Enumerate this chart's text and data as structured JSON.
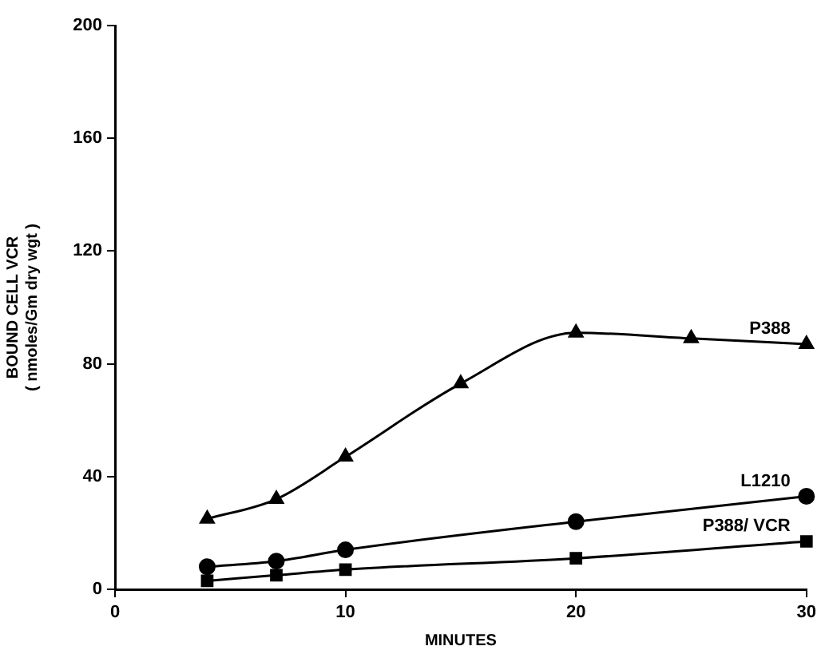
{
  "chart_data": {
    "type": "line",
    "xlabel": "MINUTES",
    "ylabel": "BOUND CELL VCR\n( nmoles/Gm dry wgt )",
    "xlim": [
      0,
      30
    ],
    "xticks": [
      0,
      10,
      20,
      30
    ],
    "ylim": [
      0,
      200
    ],
    "yticks": [
      0,
      40,
      80,
      120,
      160,
      200
    ],
    "grid": false,
    "legend": false,
    "line_style": "solid",
    "series": [
      {
        "name": "P388",
        "color": "#000000",
        "marker": "triangle",
        "x": [
          4,
          7,
          10,
          15,
          20,
          25,
          30
        ],
        "values": [
          25,
          32,
          47,
          73,
          91,
          89,
          87
        ]
      },
      {
        "name": "L1210",
        "color": "#000000",
        "marker": "circle",
        "x": [
          4,
          7,
          10,
          20,
          30
        ],
        "values": [
          8,
          10,
          14,
          24,
          33
        ]
      },
      {
        "name": "P388/ VCR",
        "color": "#000000",
        "marker": "square",
        "x": [
          4,
          7,
          10,
          20,
          30
        ],
        "values": [
          3,
          5,
          7,
          11,
          17
        ]
      }
    ]
  }
}
